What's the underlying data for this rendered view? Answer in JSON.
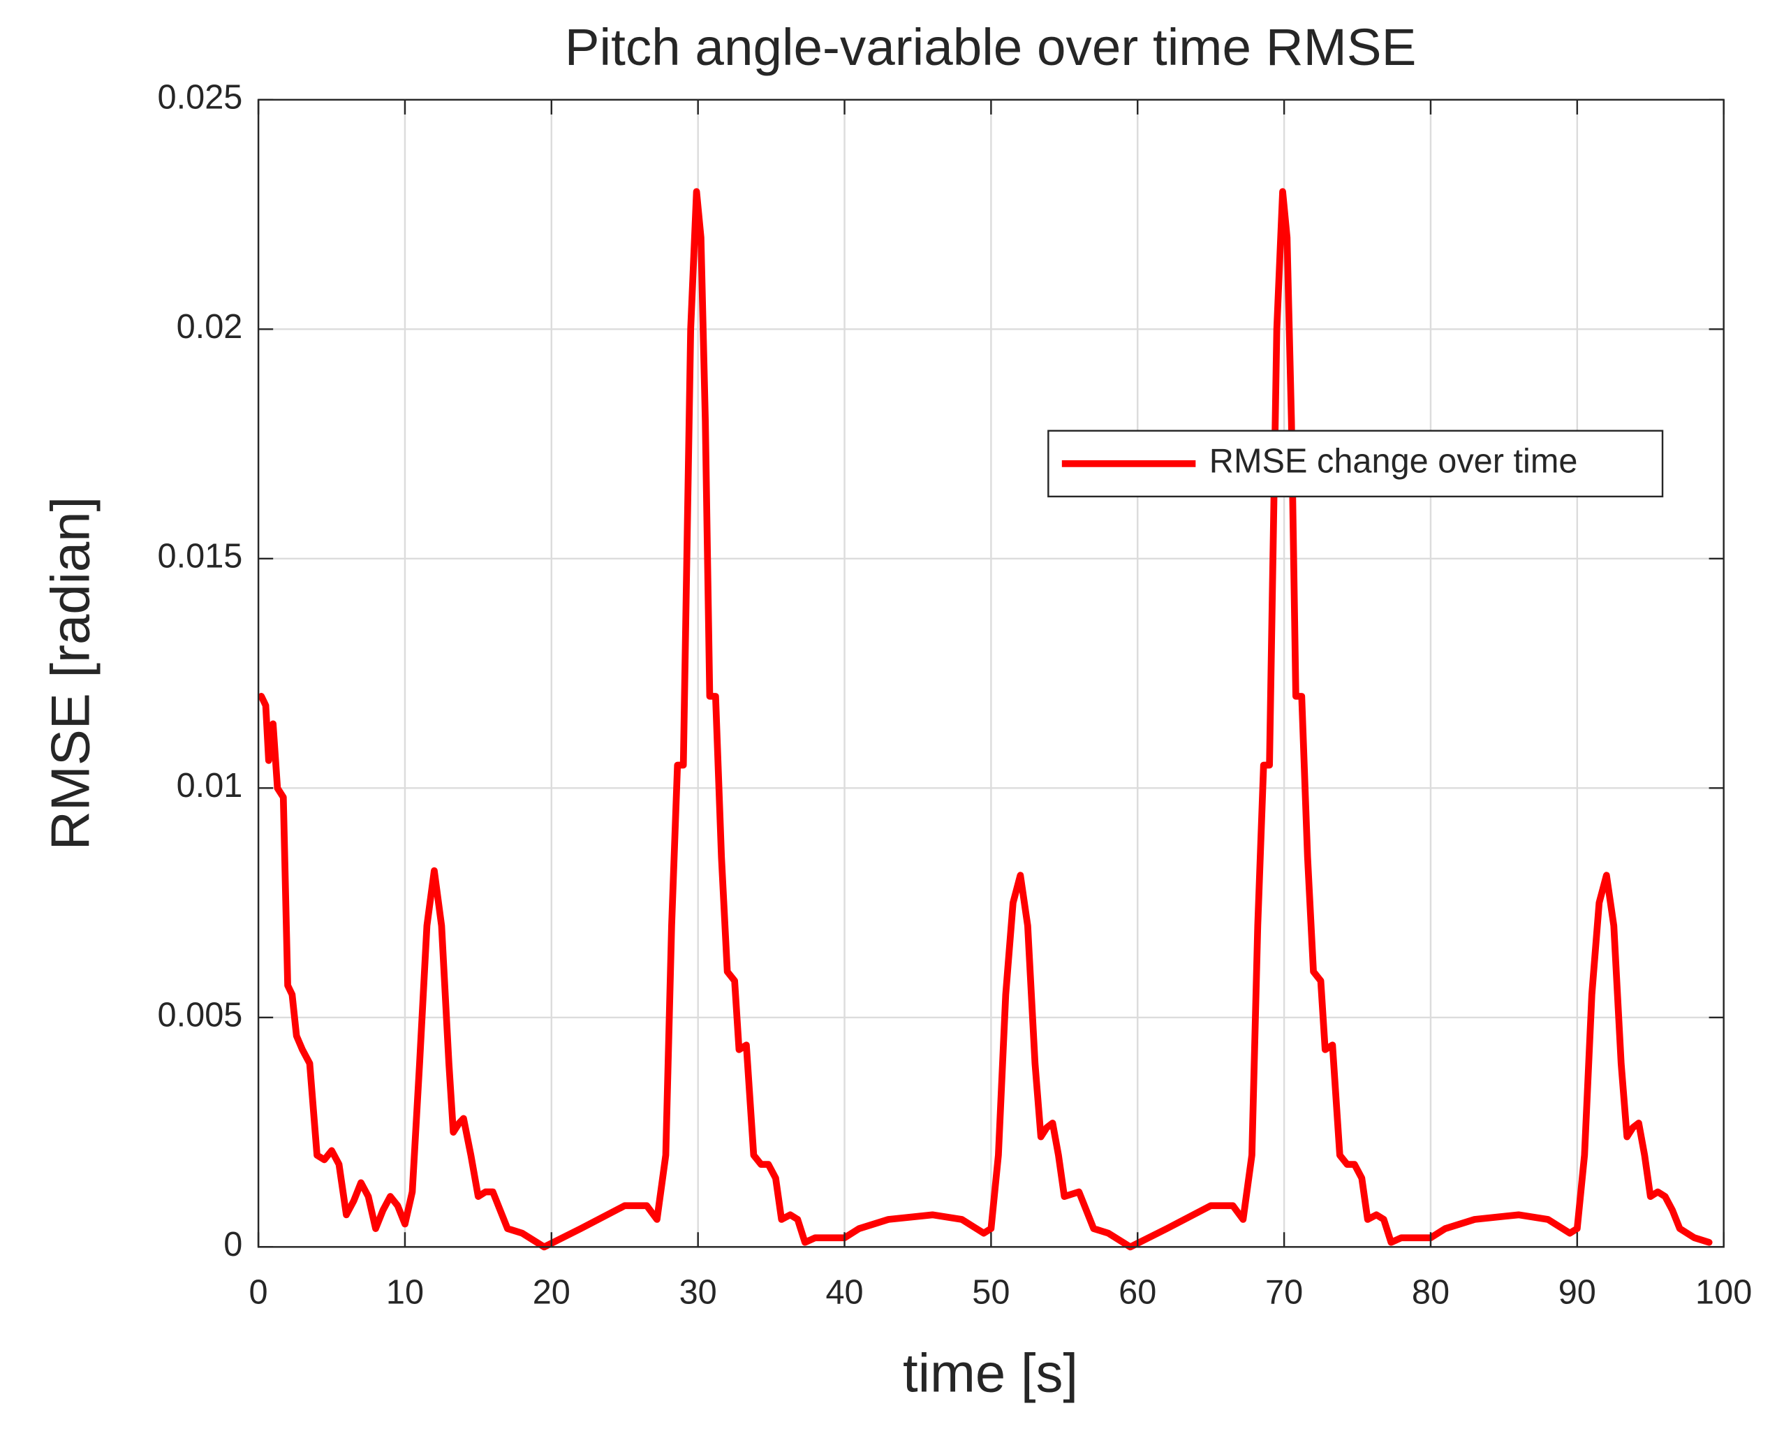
{
  "chart_data": {
    "type": "line",
    "title": "Pitch angle-variable over time RMSE",
    "xlabel": "time [s]",
    "ylabel": "RMSE [radian]",
    "xlim": [
      0,
      100
    ],
    "ylim": [
      0,
      0.025
    ],
    "xticks": [
      0,
      10,
      20,
      30,
      40,
      50,
      60,
      70,
      80,
      90,
      100
    ],
    "yticks": [
      0,
      0.005,
      0.01,
      0.015,
      0.02,
      0.025
    ],
    "grid": true,
    "legend": "northeast",
    "series": [
      {
        "name": "RMSE change over time",
        "color": "#ff0000",
        "x": [
          0.2,
          0.5,
          0.7,
          1.0,
          1.3,
          1.7,
          2.0,
          2.3,
          2.6,
          3.0,
          3.5,
          4.0,
          4.5,
          5.0,
          5.5,
          6.0,
          6.5,
          7.0,
          7.5,
          8.0,
          8.5,
          9.0,
          9.5,
          10.0,
          10.5,
          11.0,
          11.5,
          12.0,
          12.5,
          13.0,
          13.3,
          13.7,
          14.0,
          14.5,
          15.0,
          15.5,
          16.0,
          16.5,
          17.0,
          18.0,
          19.0,
          19.5,
          22.0,
          25.0,
          26.5,
          27.2,
          27.8,
          28.2,
          28.6,
          29.0,
          29.5,
          29.9,
          30.2,
          30.5,
          30.8,
          31.2,
          31.6,
          32.0,
          32.5,
          32.8,
          33.3,
          33.8,
          34.3,
          34.8,
          35.3,
          35.7,
          36.3,
          36.8,
          37.3,
          38.0,
          40.0,
          41.0,
          43.0,
          46.0,
          48.0,
          49.5,
          50.0,
          50.5,
          51.0,
          51.5,
          52.0,
          52.5,
          53.0,
          53.4,
          53.8,
          54.2,
          54.6,
          55.0,
          56.0,
          57.0,
          58.0,
          59.0,
          59.5,
          62.0,
          65.0,
          66.5,
          67.2,
          67.8,
          68.2,
          68.6,
          69.0,
          69.5,
          69.9,
          70.2,
          70.5,
          70.8,
          71.2,
          71.6,
          72.0,
          72.5,
          72.8,
          73.3,
          73.8,
          74.3,
          74.8,
          75.3,
          75.7,
          76.3,
          76.8,
          77.3,
          78.0,
          80.0,
          81.0,
          83.0,
          86.0,
          88.0,
          89.5,
          90.0,
          90.5,
          91.0,
          91.5,
          92.0,
          92.5,
          93.0,
          93.4,
          93.8,
          94.2,
          94.6,
          95.0,
          95.5,
          96.0,
          96.5,
          97.0,
          98.0,
          99.0
        ],
        "values": [
          0.012,
          0.0118,
          0.0106,
          0.0114,
          0.01,
          0.0098,
          0.0057,
          0.0055,
          0.0046,
          0.0043,
          0.004,
          0.002,
          0.0019,
          0.0021,
          0.0018,
          0.0007,
          0.001,
          0.0014,
          0.0011,
          0.0004,
          0.0008,
          0.0011,
          0.0009,
          0.0005,
          0.0012,
          0.004,
          0.007,
          0.0082,
          0.007,
          0.004,
          0.0025,
          0.0027,
          0.0028,
          0.002,
          0.0011,
          0.0012,
          0.0012,
          0.0008,
          0.0004,
          0.0003,
          0.0001,
          0.0,
          0.0004,
          0.0009,
          0.0009,
          0.0006,
          0.002,
          0.007,
          0.0105,
          0.0105,
          0.02,
          0.023,
          0.022,
          0.018,
          0.012,
          0.012,
          0.0085,
          0.006,
          0.0058,
          0.0043,
          0.0044,
          0.002,
          0.0018,
          0.0018,
          0.0015,
          0.0006,
          0.0007,
          0.0006,
          0.0001,
          0.0002,
          0.0002,
          0.0004,
          0.0006,
          0.0007,
          0.0006,
          0.0003,
          0.0004,
          0.002,
          0.0055,
          0.0075,
          0.0081,
          0.007,
          0.004,
          0.0024,
          0.0026,
          0.0027,
          0.002,
          0.0011,
          0.0012,
          0.0004,
          0.0003,
          0.0001,
          0.0,
          0.0004,
          0.0009,
          0.0009,
          0.0006,
          0.002,
          0.007,
          0.0105,
          0.0105,
          0.02,
          0.023,
          0.022,
          0.018,
          0.012,
          0.012,
          0.0085,
          0.006,
          0.0058,
          0.0043,
          0.0044,
          0.002,
          0.0018,
          0.0018,
          0.0015,
          0.0006,
          0.0007,
          0.0006,
          0.0001,
          0.0002,
          0.0002,
          0.0004,
          0.0006,
          0.0007,
          0.0006,
          0.0003,
          0.0004,
          0.002,
          0.0055,
          0.0075,
          0.0081,
          0.007,
          0.004,
          0.0024,
          0.0026,
          0.0027,
          0.002,
          0.0011,
          0.0012,
          0.0011,
          0.0008,
          0.0004,
          0.0002,
          0.0001
        ]
      }
    ]
  }
}
